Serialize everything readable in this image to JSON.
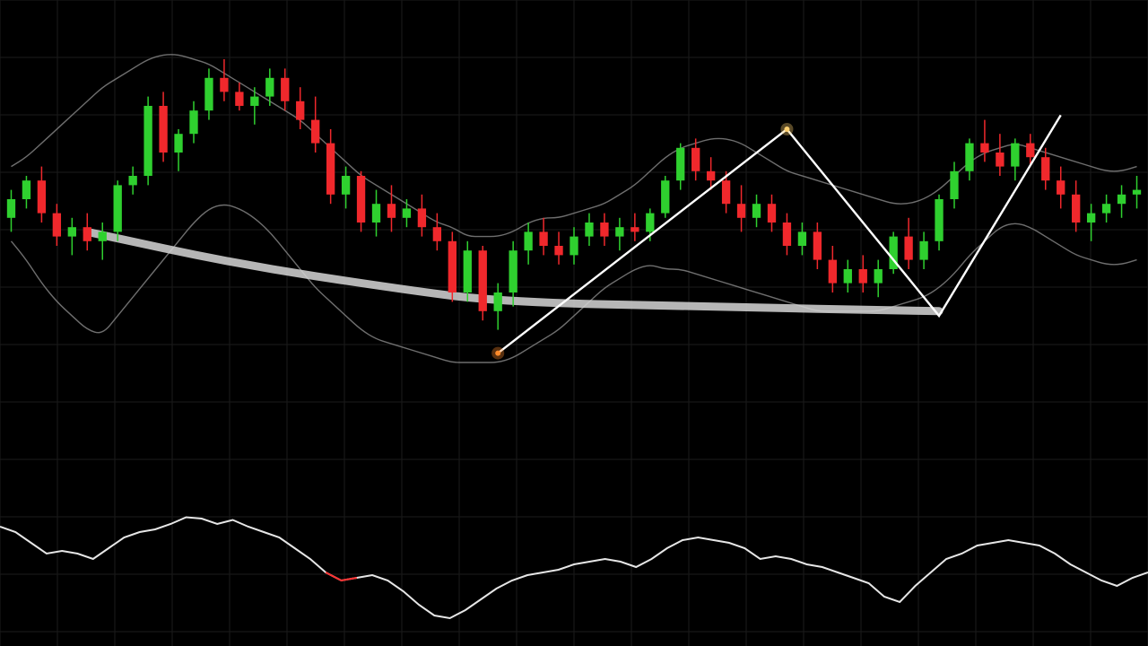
{
  "chart_data": [
    {
      "type": "candlestick",
      "title": "",
      "xlabel": "",
      "ylabel": "",
      "grid": true,
      "colors": {
        "up": "#2fd02f",
        "down": "#f0282c",
        "band": "#8a8a8a",
        "zigzag": "#ffffff",
        "trendline": "#d6d6d6",
        "background": "#000000",
        "gridline": "#1b1b1b"
      },
      "ylim": [
        0,
        100
      ],
      "x_count": 75,
      "candles": [
        {
          "o": 61,
          "h": 67,
          "l": 58,
          "c": 65
        },
        {
          "o": 65,
          "h": 70,
          "l": 63,
          "c": 69
        },
        {
          "o": 69,
          "h": 72,
          "l": 60,
          "c": 62
        },
        {
          "o": 62,
          "h": 64,
          "l": 55,
          "c": 57
        },
        {
          "o": 57,
          "h": 61,
          "l": 53,
          "c": 59
        },
        {
          "o": 59,
          "h": 62,
          "l": 54,
          "c": 56
        },
        {
          "o": 56,
          "h": 60,
          "l": 52,
          "c": 58
        },
        {
          "o": 58,
          "h": 69,
          "l": 56,
          "c": 68
        },
        {
          "o": 68,
          "h": 72,
          "l": 66,
          "c": 70
        },
        {
          "o": 70,
          "h": 87,
          "l": 68,
          "c": 85
        },
        {
          "o": 85,
          "h": 88,
          "l": 73,
          "c": 75
        },
        {
          "o": 75,
          "h": 80,
          "l": 71,
          "c": 79
        },
        {
          "o": 79,
          "h": 86,
          "l": 77,
          "c": 84
        },
        {
          "o": 84,
          "h": 93,
          "l": 82,
          "c": 91
        },
        {
          "o": 91,
          "h": 95,
          "l": 86,
          "c": 88
        },
        {
          "o": 88,
          "h": 90,
          "l": 84,
          "c": 85
        },
        {
          "o": 85,
          "h": 89,
          "l": 81,
          "c": 87
        },
        {
          "o": 87,
          "h": 93,
          "l": 85,
          "c": 91
        },
        {
          "o": 91,
          "h": 93,
          "l": 84,
          "c": 86
        },
        {
          "o": 86,
          "h": 89,
          "l": 80,
          "c": 82
        },
        {
          "o": 82,
          "h": 87,
          "l": 75,
          "c": 77
        },
        {
          "o": 77,
          "h": 80,
          "l": 64,
          "c": 66
        },
        {
          "o": 66,
          "h": 72,
          "l": 63,
          "c": 70
        },
        {
          "o": 70,
          "h": 71,
          "l": 58,
          "c": 60
        },
        {
          "o": 60,
          "h": 67,
          "l": 57,
          "c": 64
        },
        {
          "o": 64,
          "h": 68,
          "l": 58,
          "c": 61
        },
        {
          "o": 61,
          "h": 65,
          "l": 59,
          "c": 63
        },
        {
          "o": 63,
          "h": 66,
          "l": 57,
          "c": 59
        },
        {
          "o": 59,
          "h": 62,
          "l": 54,
          "c": 56
        },
        {
          "o": 56,
          "h": 58,
          "l": 43,
          "c": 45
        },
        {
          "o": 45,
          "h": 56,
          "l": 43,
          "c": 54
        },
        {
          "o": 54,
          "h": 55,
          "l": 39,
          "c": 41
        },
        {
          "o": 41,
          "h": 47,
          "l": 37,
          "c": 45
        },
        {
          "o": 45,
          "h": 56,
          "l": 42,
          "c": 54
        },
        {
          "o": 54,
          "h": 60,
          "l": 51,
          "c": 58
        },
        {
          "o": 58,
          "h": 61,
          "l": 53,
          "c": 55
        },
        {
          "o": 55,
          "h": 58,
          "l": 51,
          "c": 53
        },
        {
          "o": 53,
          "h": 59,
          "l": 51,
          "c": 57
        },
        {
          "o": 57,
          "h": 62,
          "l": 55,
          "c": 60
        },
        {
          "o": 60,
          "h": 62,
          "l": 55,
          "c": 57
        },
        {
          "o": 57,
          "h": 61,
          "l": 54,
          "c": 59
        },
        {
          "o": 59,
          "h": 62,
          "l": 56,
          "c": 58
        },
        {
          "o": 58,
          "h": 63,
          "l": 56,
          "c": 62
        },
        {
          "o": 62,
          "h": 70,
          "l": 61,
          "c": 69
        },
        {
          "o": 69,
          "h": 77,
          "l": 67,
          "c": 76
        },
        {
          "o": 76,
          "h": 78,
          "l": 69,
          "c": 71
        },
        {
          "o": 71,
          "h": 74,
          "l": 67,
          "c": 69
        },
        {
          "o": 69,
          "h": 71,
          "l": 62,
          "c": 64
        },
        {
          "o": 64,
          "h": 68,
          "l": 58,
          "c": 61
        },
        {
          "o": 61,
          "h": 66,
          "l": 59,
          "c": 64
        },
        {
          "o": 64,
          "h": 66,
          "l": 58,
          "c": 60
        },
        {
          "o": 60,
          "h": 62,
          "l": 53,
          "c": 55
        },
        {
          "o": 55,
          "h": 60,
          "l": 53,
          "c": 58
        },
        {
          "o": 58,
          "h": 60,
          "l": 50,
          "c": 52
        },
        {
          "o": 52,
          "h": 55,
          "l": 45,
          "c": 47
        },
        {
          "o": 47,
          "h": 52,
          "l": 45,
          "c": 50
        },
        {
          "o": 50,
          "h": 53,
          "l": 45,
          "c": 47
        },
        {
          "o": 47,
          "h": 52,
          "l": 44,
          "c": 50
        },
        {
          "o": 50,
          "h": 58,
          "l": 49,
          "c": 57
        },
        {
          "o": 57,
          "h": 61,
          "l": 50,
          "c": 52
        },
        {
          "o": 52,
          "h": 58,
          "l": 50,
          "c": 56
        },
        {
          "o": 56,
          "h": 66,
          "l": 54,
          "c": 65
        },
        {
          "o": 65,
          "h": 73,
          "l": 63,
          "c": 71
        },
        {
          "o": 71,
          "h": 78,
          "l": 69,
          "c": 77
        },
        {
          "o": 77,
          "h": 82,
          "l": 73,
          "c": 75
        },
        {
          "o": 75,
          "h": 79,
          "l": 70,
          "c": 72
        },
        {
          "o": 72,
          "h": 78,
          "l": 69,
          "c": 77
        },
        {
          "o": 77,
          "h": 79,
          "l": 72,
          "c": 74
        },
        {
          "o": 74,
          "h": 76,
          "l": 67,
          "c": 69
        },
        {
          "o": 69,
          "h": 72,
          "l": 63,
          "c": 66
        },
        {
          "o": 66,
          "h": 69,
          "l": 58,
          "c": 60
        },
        {
          "o": 60,
          "h": 64,
          "l": 56,
          "c": 62
        },
        {
          "o": 62,
          "h": 66,
          "l": 60,
          "c": 64
        },
        {
          "o": 64,
          "h": 68,
          "l": 61,
          "c": 66
        },
        {
          "o": 66,
          "h": 70,
          "l": 63,
          "c": 67
        }
      ],
      "bollinger_upper": [
        72,
        74,
        77,
        80,
        83,
        86,
        89,
        91,
        93,
        95,
        96,
        96,
        95,
        94,
        92,
        90,
        88,
        86,
        84,
        82,
        79,
        76,
        73,
        70,
        68,
        66,
        64,
        62,
        60,
        59,
        57,
        57,
        57,
        58,
        60,
        61,
        61,
        62,
        63,
        64,
        66,
        68,
        71,
        74,
        76,
        77,
        78,
        78,
        77,
        75,
        73,
        71,
        70,
        69,
        68,
        67,
        66,
        65,
        64,
        64,
        65,
        67,
        70,
        73,
        75,
        76,
        77,
        76,
        75,
        74,
        73,
        72,
        71,
        71,
        72
      ],
      "bollinger_lower": [
        56,
        52,
        47,
        43,
        40,
        37,
        36,
        40,
        44,
        48,
        52,
        56,
        60,
        63,
        64,
        63,
        61,
        58,
        54,
        50,
        46,
        43,
        40,
        37,
        35,
        34,
        33,
        32,
        31,
        30,
        30,
        30,
        30,
        31,
        33,
        35,
        37,
        40,
        43,
        46,
        48,
        50,
        51,
        50,
        50,
        49,
        48,
        47,
        46,
        45,
        44,
        43,
        42,
        41,
        41,
        41,
        41,
        41,
        42,
        43,
        44,
        46,
        49,
        53,
        56,
        59,
        60,
        59,
        57,
        55,
        53,
        52,
        51,
        51,
        52
      ],
      "zigzag": [
        [
          32,
          32
        ],
        [
          51,
          80
        ],
        [
          61,
          40
        ],
        [
          69,
          83
        ]
      ],
      "curved_trendline": [
        [
          5,
          58
        ],
        [
          15,
          51
        ],
        [
          25,
          46
        ],
        [
          32,
          43
        ],
        [
          45,
          42
        ],
        [
          61,
          41
        ]
      ],
      "markers": [
        {
          "x": 32,
          "y": 32,
          "color": "#ff8a2a"
        },
        {
          "x": 51,
          "y": 80,
          "color": "#ffd070"
        }
      ]
    },
    {
      "type": "line",
      "title": "",
      "xlabel": "",
      "ylabel": "",
      "ylim": [
        0,
        100
      ],
      "x_count": 75,
      "line_color": "#e6e6e6",
      "highlight_color": "#ff3030",
      "highlight_range": [
        21,
        23
      ],
      "values": [
        82,
        78,
        70,
        62,
        64,
        62,
        58,
        66,
        74,
        78,
        80,
        84,
        89,
        88,
        84,
        87,
        82,
        78,
        74,
        66,
        58,
        48,
        42,
        44,
        46,
        42,
        34,
        24,
        16,
        14,
        20,
        28,
        36,
        42,
        46,
        48,
        50,
        54,
        56,
        58,
        56,
        52,
        58,
        66,
        72,
        74,
        72,
        70,
        66,
        58,
        60,
        58,
        54,
        52,
        48,
        44,
        40,
        30,
        26,
        38,
        48,
        58,
        62,
        68,
        70,
        72,
        70,
        68,
        62,
        54,
        48,
        42,
        38,
        44,
        48
      ]
    }
  ]
}
